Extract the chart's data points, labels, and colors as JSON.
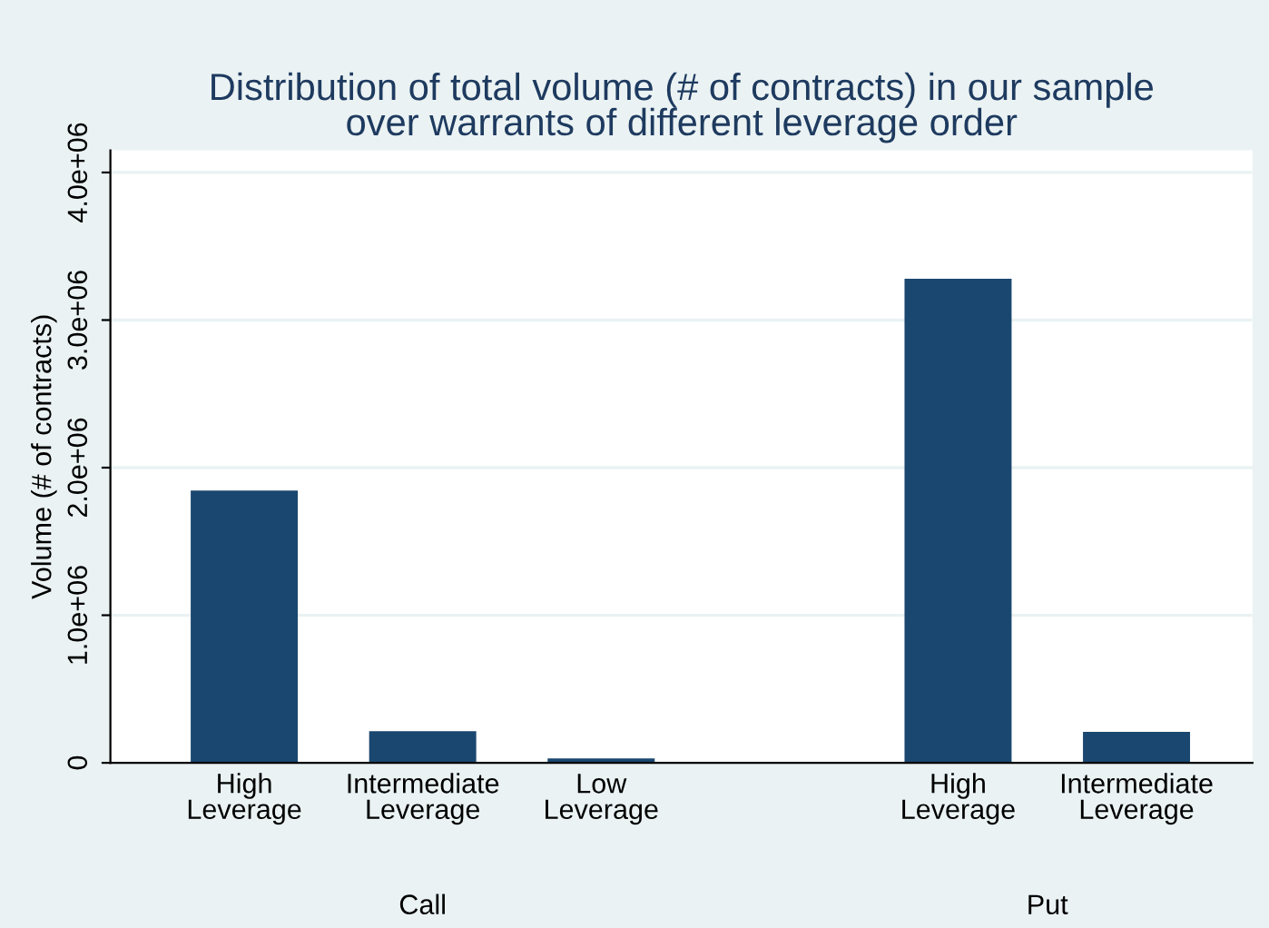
{
  "chart_data": {
    "type": "bar",
    "title": "Distribution of total volume (# of contracts) in our sample\nover warrants of different leverage order",
    "ylabel": "Volume (# of contracts)",
    "categories": [
      "High\nLeverage",
      "Intermediate\nLeverage",
      "Low\nLeverage",
      null,
      "High\nLeverage",
      "Intermediate\nLeverage"
    ],
    "values": [
      1845000,
      215000,
      30000,
      null,
      3280000,
      210000
    ],
    "color": "#1a476f",
    "annotations": [
      "Call",
      "Put"
    ],
    "ylim": [
      0,
      4150000
    ],
    "yticks": [
      0,
      {
        "value": 1000000,
        "label": "1.0e+06"
      },
      {
        "value": 2000000,
        "label": "2.0e+06"
      },
      {
        "value": 3000000,
        "label": "3.0e+06"
      },
      {
        "value": 4000000,
        "label": "4.0e+06"
      }
    ],
    "grid": "y",
    "legend": false
  }
}
